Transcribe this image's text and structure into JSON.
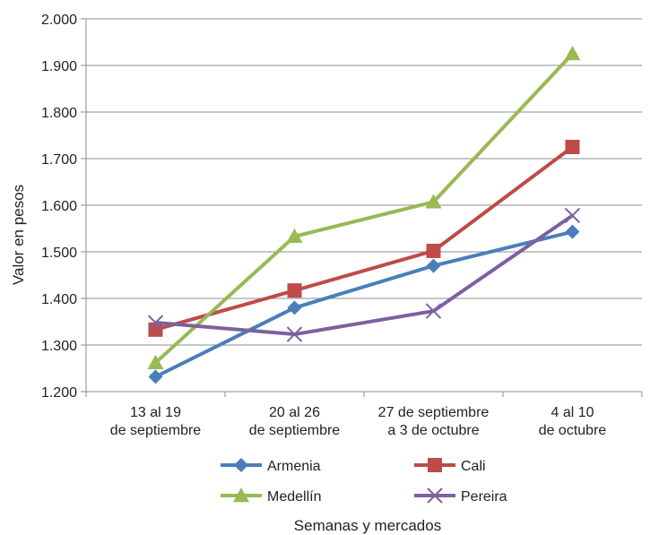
{
  "chart_data": {
    "type": "line",
    "categories": [
      [
        "13 al 19",
        "de septiembre"
      ],
      [
        "20 al 26",
        "de septiembre"
      ],
      [
        "27 de septiembre",
        "a 3 de octubre"
      ],
      [
        "4 al 10",
        "de octubre"
      ]
    ],
    "series": [
      {
        "name": "Armenia",
        "values": [
          1232,
          1380,
          1470,
          1543
        ],
        "color": "#4a7ebb",
        "marker": "diamond"
      },
      {
        "name": "Cali",
        "values": [
          1333,
          1417,
          1502,
          1725
        ],
        "color": "#be4b48",
        "marker": "square"
      },
      {
        "name": "Medellín",
        "values": [
          1262,
          1533,
          1607,
          1925
        ],
        "color": "#98b954",
        "marker": "triangle"
      },
      {
        "name": "Pereira",
        "values": [
          1348,
          1323,
          1373,
          1578
        ],
        "color": "#7d60a0",
        "marker": "x"
      }
    ],
    "ylabel": "Valor en pesos",
    "xlabel": "Semanas y mercados",
    "ylim": [
      1200,
      2000
    ],
    "yticks": [
      "1.200",
      "1.300",
      "1.400",
      "1.500",
      "1.600",
      "1.700",
      "1.800",
      "1.900",
      "2.000"
    ],
    "grid": true,
    "legend_position": "bottom"
  }
}
